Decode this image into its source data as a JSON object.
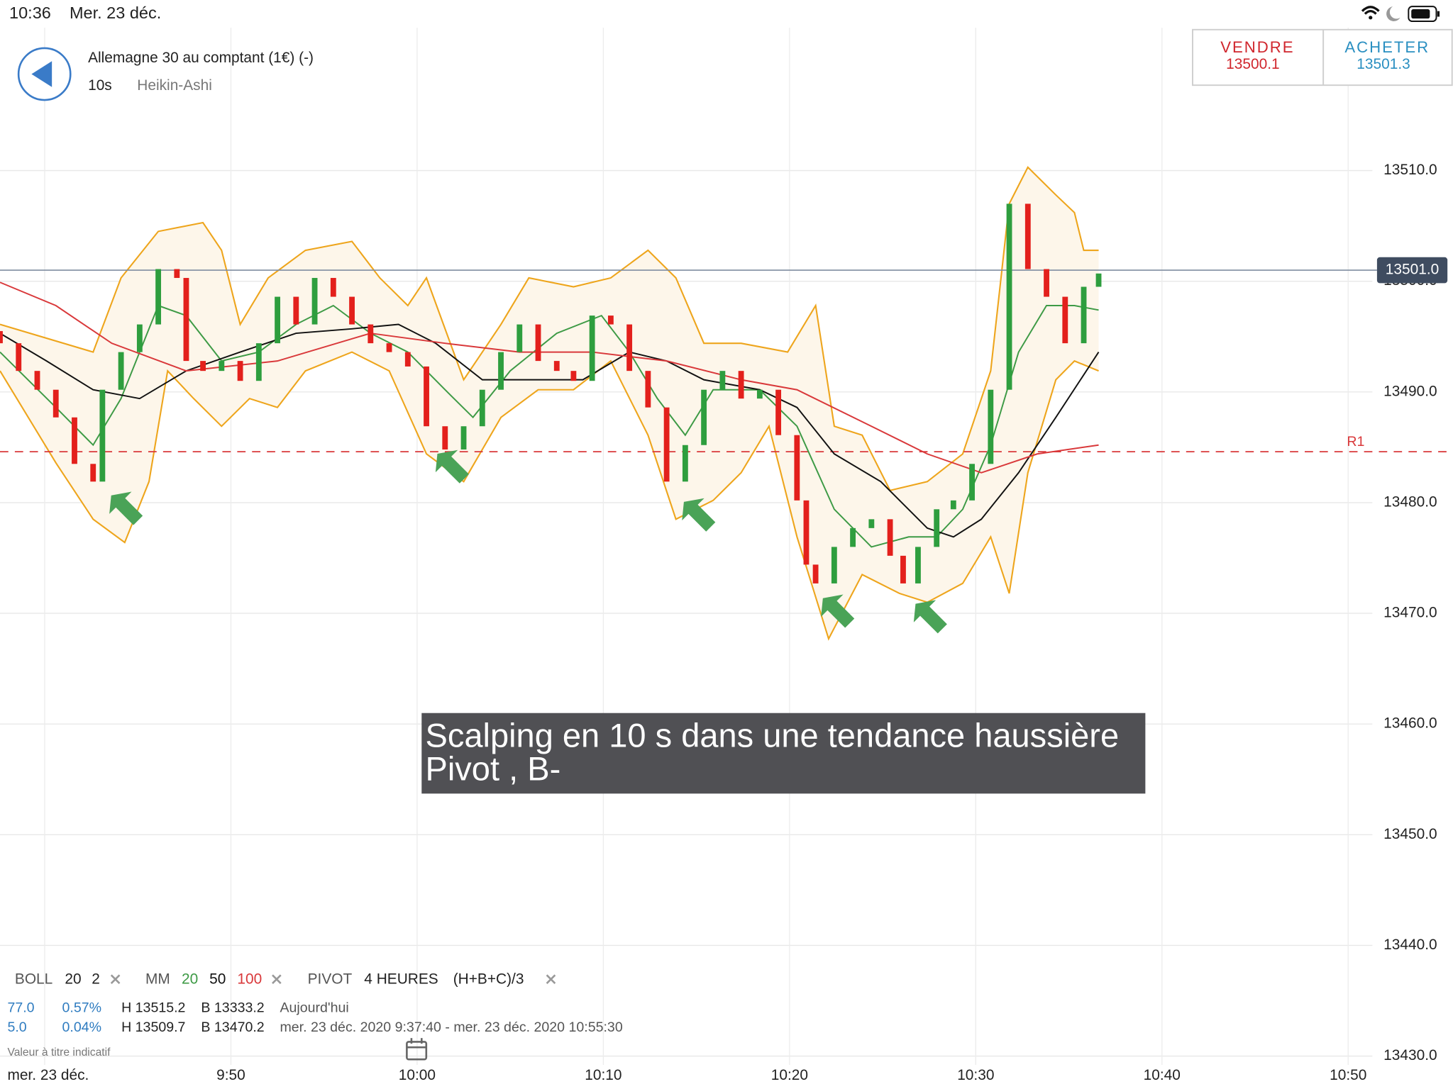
{
  "status_bar": {
    "time": "10:36",
    "date": "Mer. 23 déc."
  },
  "header": {
    "instrument": "Allemagne 30 au comptant (1€) (-)",
    "interval": "10s",
    "chart_style": "Heikin-Ashi"
  },
  "trade": {
    "sell_label": "VENDRE",
    "sell_price": "13500.1",
    "buy_label": "ACHETER",
    "buy_price": "13501.3"
  },
  "annotation": {
    "lines": [
      "Scalping en 10 s dans une tendance haussière",
      "Pivot , B-"
    ]
  },
  "indicators": {
    "boll": {
      "label": "BOLL",
      "period": "20",
      "deviation": "2"
    },
    "mm": {
      "label": "MM",
      "periods": [
        "20",
        "50",
        "100"
      ]
    },
    "pivot": {
      "label": "PIVOT",
      "timeframe": "4 HEURES",
      "formula": "(H+B+C)/3"
    }
  },
  "stats": {
    "rows": [
      [
        "77.0",
        "0.57%",
        "H 13515.2",
        "B 13333.2",
        "Aujourd'hui"
      ],
      [
        "5.0",
        "0.04%",
        "H 13509.7",
        "B 13470.2",
        "mer. 23 déc. 2020 9:37:40 - mer. 23 déc. 2020 10:55:30"
      ]
    ]
  },
  "footer": {
    "disclaimer": "Valeur à titre indicatif",
    "date": "mer. 23 déc."
  },
  "chart_data": {
    "type": "candlestick",
    "x": [
      577.6,
      578.6,
      579.6,
      580.6,
      581.6,
      582.6,
      583.1,
      584.1,
      585.1,
      586.1,
      587.1,
      587.6,
      588.5,
      589.5,
      590.5,
      591.5,
      592.5,
      593.5,
      594.5,
      595.5,
      596.5,
      597.5,
      598.5,
      599.5,
      600.5,
      601.5,
      602.5,
      603.5,
      604.5,
      605.5,
      606.5,
      607.5,
      608.4,
      609.4,
      610.4,
      611.4,
      612.4,
      613.4,
      614.4,
      615.4,
      616.4,
      617.4,
      618.4,
      619.4,
      620.4,
      620.9,
      621.4,
      622.4,
      623.4,
      624.4,
      625.4,
      626.1,
      626.9,
      627.9,
      628.8,
      629.8,
      630.8,
      631.8,
      632.8,
      633.8,
      634.8,
      635.8,
      636.6
    ],
    "open": [
      13495.5,
      13494.4,
      13491.9,
      13490.2,
      13487.7,
      13483.5,
      13481.9,
      13490.2,
      13493.6,
      13496.1,
      13501.1,
      13500.3,
      13492.8,
      13491.9,
      13492.8,
      13491.0,
      13494.4,
      13498.6,
      13496.1,
      13500.3,
      13498.6,
      13496.1,
      13494.4,
      13493.6,
      13492.3,
      13486.9,
      13484.8,
      13486.9,
      13490.2,
      13493.6,
      13496.1,
      13492.8,
      13491.9,
      13491.0,
      13496.9,
      13496.1,
      13491.9,
      13488.6,
      13481.9,
      13485.2,
      13490.2,
      13491.9,
      13489.4,
      13490.2,
      13486.1,
      13480.2,
      13474.4,
      13472.7,
      13476.0,
      13477.7,
      13478.5,
      13475.2,
      13472.7,
      13476.0,
      13479.4,
      13480.2,
      13483.5,
      13490.2,
      13507.0,
      13501.1,
      13498.6,
      13494.4,
      13499.5
    ],
    "close": [
      13494.4,
      13491.9,
      13490.2,
      13487.7,
      13483.5,
      13481.9,
      13490.2,
      13493.6,
      13496.1,
      13501.1,
      13500.3,
      13492.8,
      13491.9,
      13492.8,
      13491.0,
      13494.4,
      13498.6,
      13496.1,
      13500.3,
      13498.6,
      13496.1,
      13494.4,
      13493.6,
      13492.3,
      13486.9,
      13484.8,
      13486.9,
      13490.2,
      13493.6,
      13496.1,
      13492.8,
      13491.9,
      13491.0,
      13496.9,
      13496.1,
      13491.9,
      13488.6,
      13481.9,
      13485.2,
      13490.2,
      13491.9,
      13489.4,
      13490.2,
      13486.1,
      13480.2,
      13474.4,
      13472.7,
      13476.0,
      13477.7,
      13478.5,
      13475.2,
      13472.7,
      13476.0,
      13479.4,
      13480.2,
      13483.5,
      13490.2,
      13507.0,
      13501.1,
      13498.6,
      13494.4,
      13499.5,
      13500.7
    ],
    "up_color": "#2e9e3e",
    "down_color": "#e3201c",
    "bollinger": {
      "color": "#eea51c",
      "fill": "#fdf6ea",
      "upper": {
        "x": [
          577.6,
          582.6,
          584.1,
          586.1,
          588.5,
          589.5,
          590.5,
          592.0,
          594.0,
          596.5,
          598.0,
          599.5,
          600.5,
          602.5,
          604.5,
          606.0,
          608.4,
          610.4,
          612.4,
          613.9,
          615.4,
          617.4,
          619.9,
          621.4,
          622.4,
          623.9,
          625.4,
          627.4,
          629.3,
          630.8,
          631.8,
          632.8,
          634.3,
          635.3,
          635.8,
          636.6
        ],
        "values": [
          13496.1,
          13493.6,
          13500.3,
          13504.5,
          13505.3,
          13502.8,
          13496.1,
          13500.3,
          13502.8,
          13503.6,
          13500.3,
          13497.8,
          13500.3,
          13491.1,
          13496.1,
          13500.3,
          13499.5,
          13500.3,
          13502.8,
          13500.3,
          13494.4,
          13494.4,
          13493.6,
          13497.8,
          13486.9,
          13486.1,
          13481.1,
          13481.9,
          13484.4,
          13491.9,
          13507.0,
          13510.3,
          13507.8,
          13506.2,
          13502.8,
          13502.8
        ]
      },
      "lower": {
        "x": [
          577.6,
          580.6,
          582.6,
          584.3,
          585.6,
          586.6,
          588.0,
          589.5,
          591.0,
          592.5,
          594.0,
          596.5,
          598.5,
          600.5,
          602.5,
          604.5,
          606.5,
          608.4,
          610.4,
          612.4,
          613.9,
          615.9,
          617.4,
          618.9,
          620.4,
          622.1,
          623.9,
          625.9,
          627.4,
          629.3,
          630.8,
          631.8,
          632.8,
          634.3,
          635.3,
          636.6
        ],
        "values": [
          13491.9,
          13483.6,
          13478.5,
          13476.4,
          13481.9,
          13491.9,
          13489.4,
          13486.9,
          13489.4,
          13488.6,
          13491.9,
          13493.6,
          13491.9,
          13484.4,
          13481.9,
          13487.7,
          13490.2,
          13490.2,
          13492.8,
          13486.1,
          13478.5,
          13480.2,
          13482.7,
          13486.9,
          13476.9,
          13467.7,
          13473.5,
          13471.8,
          13471.0,
          13472.7,
          13476.9,
          13471.8,
          13482.7,
          13491.1,
          13492.8,
          13491.9
        ]
      }
    },
    "moving_averages": [
      {
        "color": "#3d9a45",
        "x": [
          577.6,
          580.6,
          582.6,
          584.1,
          586.1,
          587.6,
          589.5,
          591.5,
          593.5,
          595.5,
          597.5,
          599.5,
          601.5,
          603.0,
          605.0,
          607.5,
          609.9,
          611.4,
          612.9,
          614.4,
          615.9,
          618.4,
          620.4,
          622.4,
          624.4,
          626.4,
          627.9,
          629.3,
          630.8,
          632.3,
          633.8,
          635.3,
          636.6
        ],
        "values": [
          13493.6,
          13488.6,
          13485.2,
          13489.4,
          13497.8,
          13496.9,
          13492.8,
          13493.6,
          13496.1,
          13497.8,
          13495.3,
          13493.6,
          13490.2,
          13487.7,
          13491.9,
          13495.3,
          13496.9,
          13493.6,
          13489.4,
          13486.1,
          13490.2,
          13490.2,
          13486.9,
          13479.4,
          13476.0,
          13476.9,
          13476.9,
          13479.4,
          13485.2,
          13493.6,
          13497.8,
          13497.8,
          13497.4
        ]
      },
      {
        "color": "#111111",
        "x": [
          577.6,
          580.1,
          582.6,
          585.1,
          587.6,
          590.5,
          593.5,
          596.5,
          599.0,
          601.0,
          603.5,
          606.5,
          608.9,
          611.4,
          613.4,
          615.4,
          618.4,
          620.4,
          622.4,
          624.9,
          627.4,
          628.8,
          630.3,
          632.3,
          634.3,
          636.6
        ],
        "values": [
          13495.3,
          13492.8,
          13490.2,
          13489.4,
          13491.9,
          13493.6,
          13495.3,
          13495.7,
          13496.1,
          13494.4,
          13491.1,
          13491.1,
          13491.1,
          13493.6,
          13492.8,
          13491.1,
          13490.2,
          13488.6,
          13484.4,
          13481.9,
          13477.7,
          13476.9,
          13478.5,
          13482.7,
          13487.7,
          13493.6
        ]
      },
      {
        "color": "#d9383a",
        "x": [
          577.6,
          580.6,
          583.6,
          587.6,
          592.5,
          597.5,
          601.5,
          605.5,
          609.4,
          613.4,
          617.4,
          620.4,
          624.4,
          627.4,
          630.3,
          633.3,
          636.6
        ],
        "values": [
          13499.9,
          13497.8,
          13494.4,
          13491.9,
          13492.8,
          13495.3,
          13494.4,
          13493.6,
          13493.6,
          13492.8,
          13491.1,
          13490.2,
          13486.9,
          13484.4,
          13482.7,
          13484.4,
          13485.2
        ]
      }
    ],
    "last_price": {
      "value": 13501,
      "label": "13501.0"
    },
    "last_price_color": "#3f4c60",
    "pivot": {
      "value": 13484.6,
      "label": "R1"
    },
    "pivot_color": "#d9383a",
    "xlim": [
      577.6,
      651.3
    ],
    "xticks": [
      {
        "value": 580,
        "label": null
      },
      {
        "value": 590,
        "label": "9:50"
      },
      {
        "value": 600,
        "label": "10:00"
      },
      {
        "value": 610,
        "label": "10:10"
      },
      {
        "value": 620,
        "label": "10:20"
      },
      {
        "value": 630,
        "label": "10:30"
      },
      {
        "value": 640,
        "label": "10:40"
      },
      {
        "value": 650,
        "label": "10:50"
      }
    ],
    "ylim": [
      13429.2,
      13522.9
    ],
    "yticks": [
      {
        "value": 13430,
        "label": "13430.0"
      },
      {
        "value": 13440,
        "label": "13440.0"
      },
      {
        "value": 13450,
        "label": "13450.0"
      },
      {
        "value": 13460,
        "label": "13460.0"
      },
      {
        "value": 13470,
        "label": "13470.0"
      },
      {
        "value": 13480,
        "label": "13480.0"
      },
      {
        "value": 13490,
        "label": "13490.0"
      },
      {
        "value": 13500,
        "label": "13500.0"
      },
      {
        "value": 13510,
        "label": "13510.0"
      }
    ],
    "grid": true
  }
}
